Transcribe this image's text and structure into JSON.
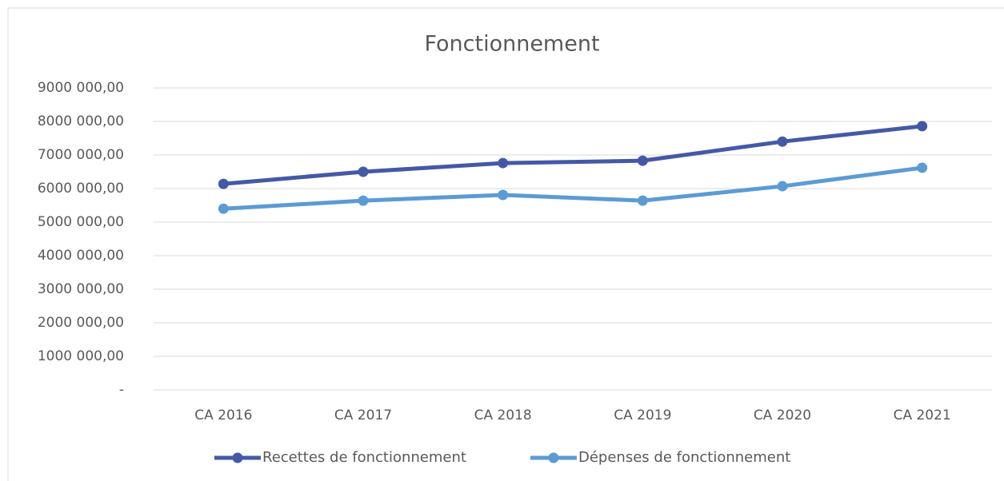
{
  "chart_data": {
    "type": "line",
    "title": "Fonctionnement",
    "categories": [
      "CA 2016",
      "CA 2017",
      "CA 2018",
      "CA 2019",
      "CA 2020",
      "CA 2021"
    ],
    "series": [
      {
        "name": "Recettes de fonctionnement",
        "color": "#4459a6",
        "values": [
          6140000,
          6500000,
          6760000,
          6830000,
          7400000,
          7860000
        ]
      },
      {
        "name": "Dépenses de fonctionnement",
        "color": "#5b9bd5",
        "values": [
          5400000,
          5640000,
          5810000,
          5640000,
          6070000,
          6620000
        ]
      }
    ],
    "ylim": [
      0,
      9000000
    ],
    "yticks": [
      {
        "value": 0,
        "label": "-"
      },
      {
        "value": 1000000,
        "label": "1000 000,00"
      },
      {
        "value": 2000000,
        "label": "2000 000,00"
      },
      {
        "value": 3000000,
        "label": "3000 000,00"
      },
      {
        "value": 4000000,
        "label": "4000 000,00"
      },
      {
        "value": 5000000,
        "label": "5000 000,00"
      },
      {
        "value": 6000000,
        "label": "6000 000,00"
      },
      {
        "value": 7000000,
        "label": "7000 000,00"
      },
      {
        "value": 8000000,
        "label": "8000 000,00"
      },
      {
        "value": 9000000,
        "label": "9000 000,00"
      }
    ],
    "grid": true,
    "legend": "bottom"
  }
}
